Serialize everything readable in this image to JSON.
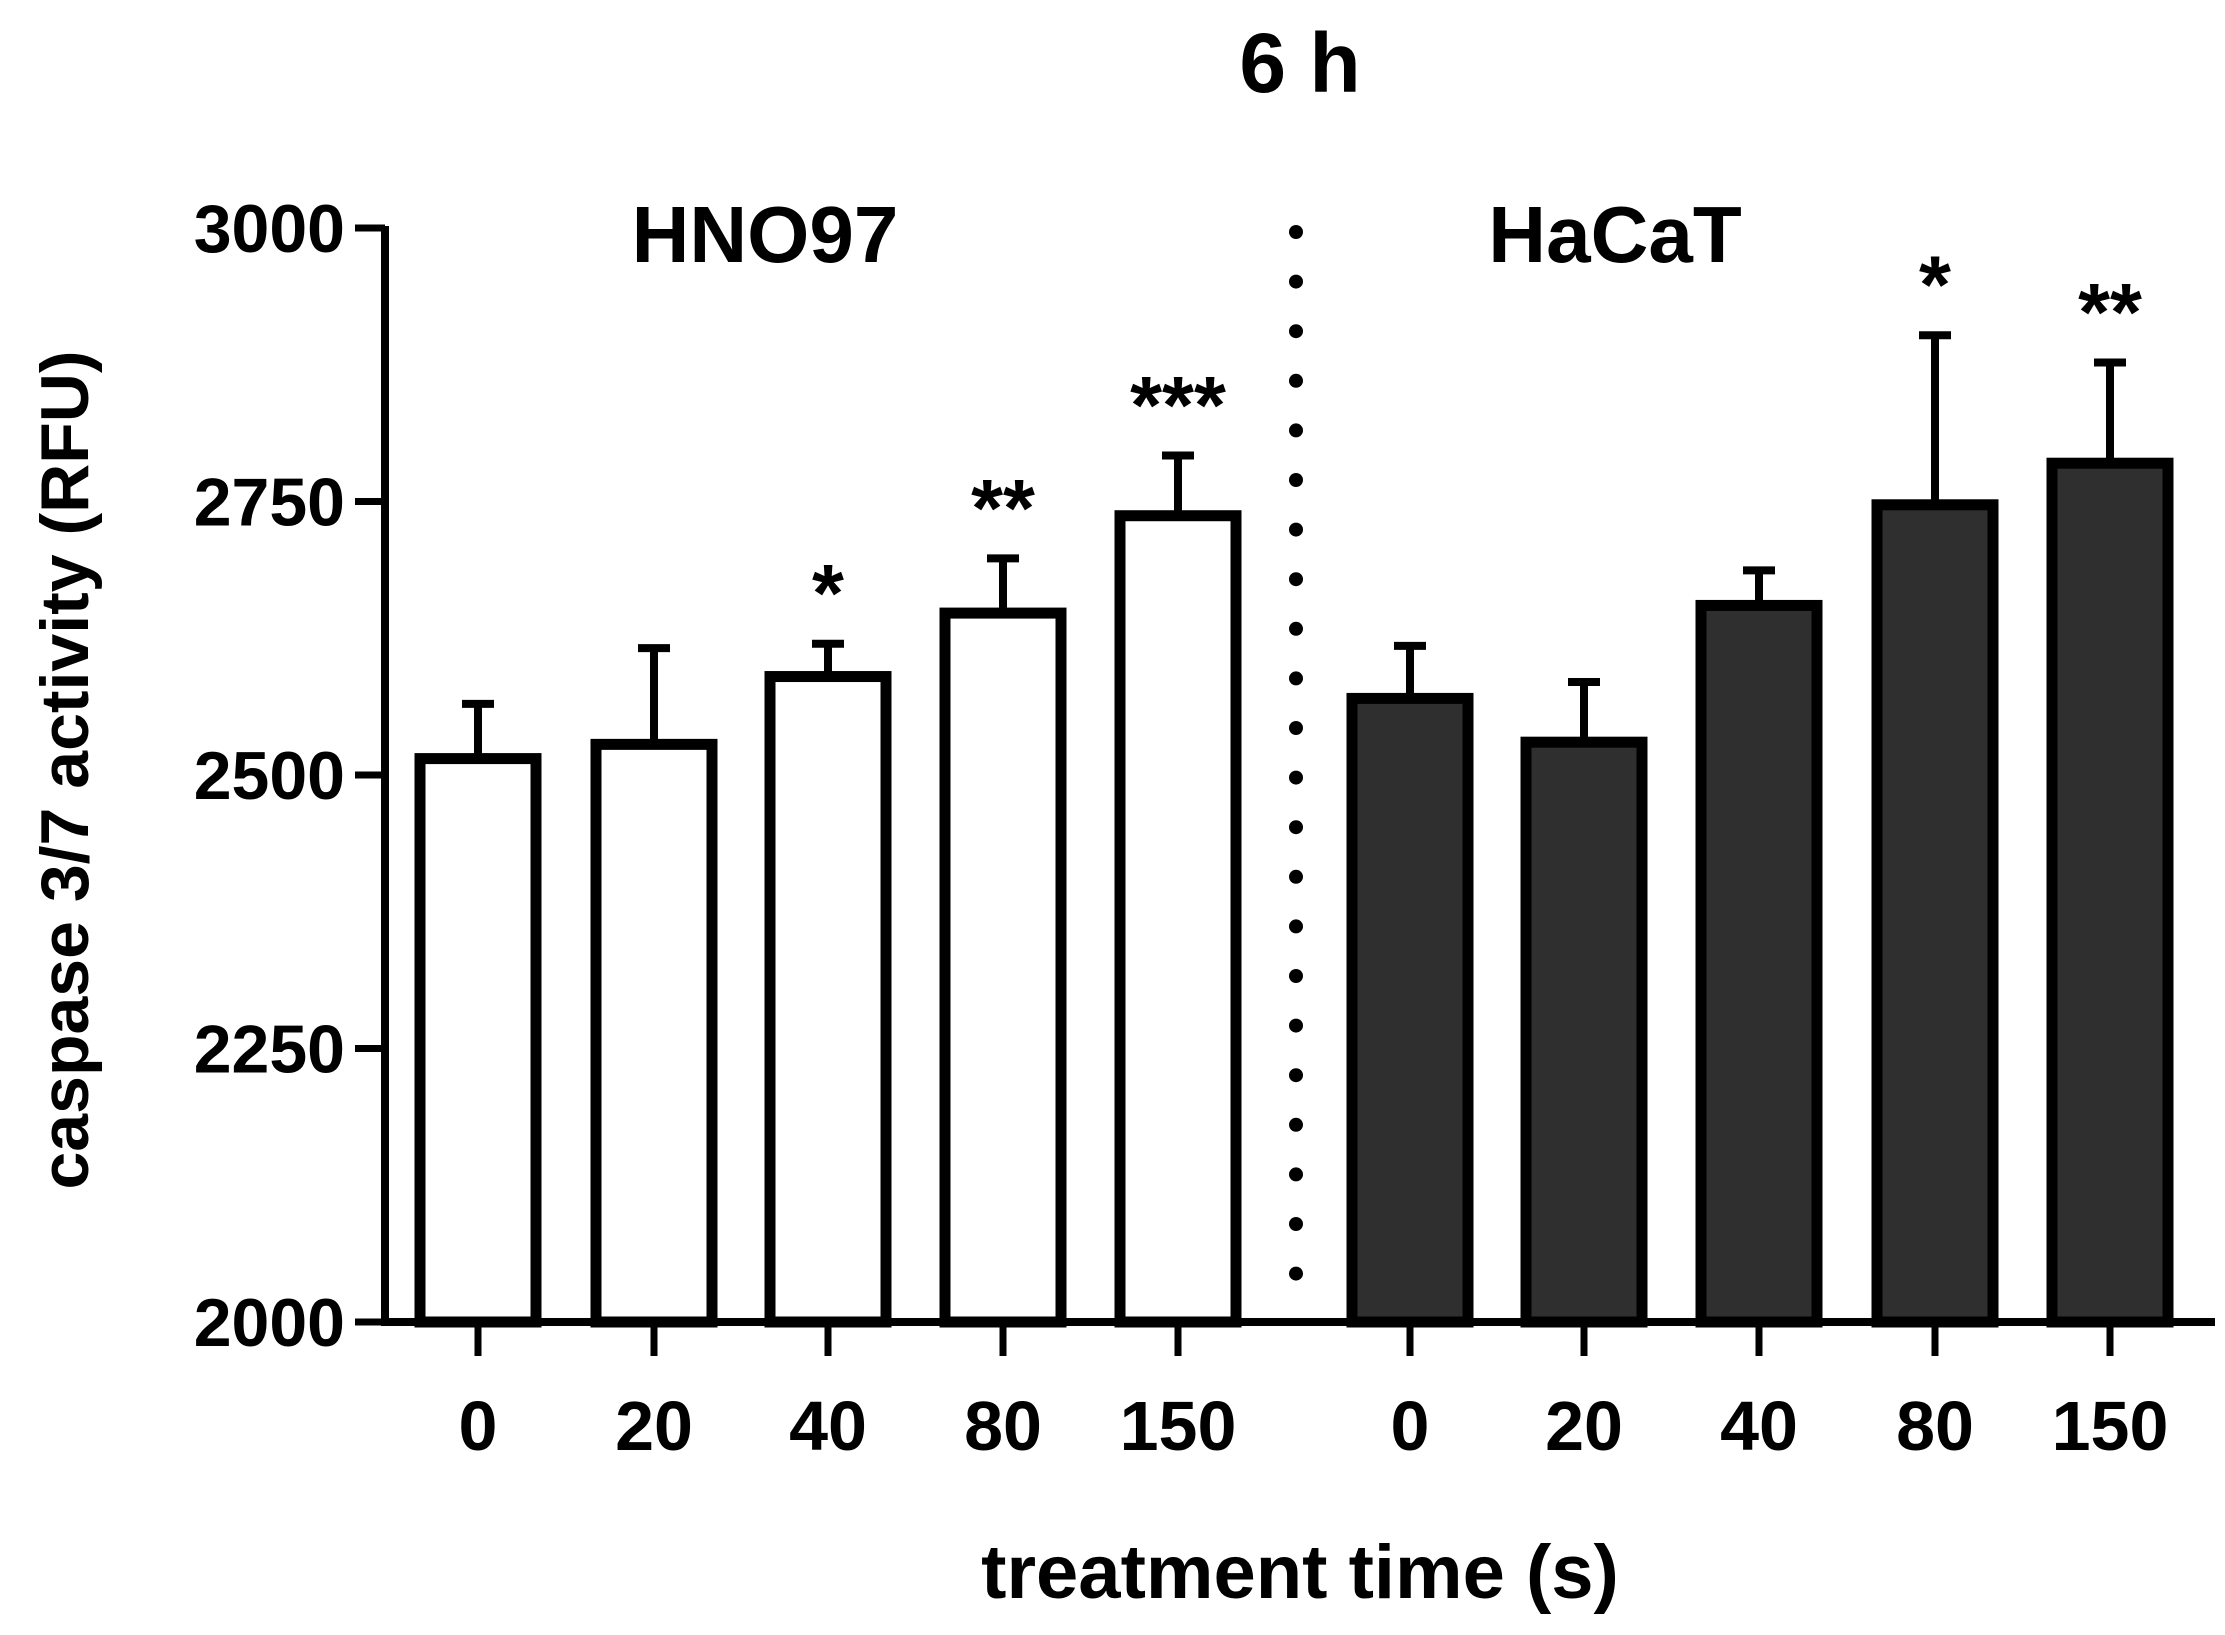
{
  "chart_data": {
    "type": "bar",
    "title": "6 h",
    "xlabel": "treatment time (s)",
    "ylabel": "caspase 3/7 activity (RFU)",
    "ylim": [
      2000,
      3000
    ],
    "yticks": [
      2000,
      2250,
      2500,
      2750,
      3000
    ],
    "grid": false,
    "groups": [
      {
        "name": "HNO97",
        "fill": "#ffffff",
        "categories": [
          "0",
          "20",
          "40",
          "80",
          "150"
        ],
        "values": [
          2515,
          2528,
          2590,
          2648,
          2737
        ],
        "errors": [
          50,
          88,
          30,
          50,
          55
        ],
        "significance": [
          "",
          "",
          "*",
          "**",
          "***"
        ]
      },
      {
        "name": "HaCaT",
        "fill": "#2f2f2f",
        "categories": [
          "0",
          "20",
          "40",
          "80",
          "150"
        ],
        "values": [
          2570,
          2530,
          2655,
          2747,
          2785
        ],
        "errors": [
          48,
          55,
          32,
          155,
          92
        ],
        "significance": [
          "",
          "",
          "",
          "*",
          "**"
        ]
      }
    ]
  }
}
